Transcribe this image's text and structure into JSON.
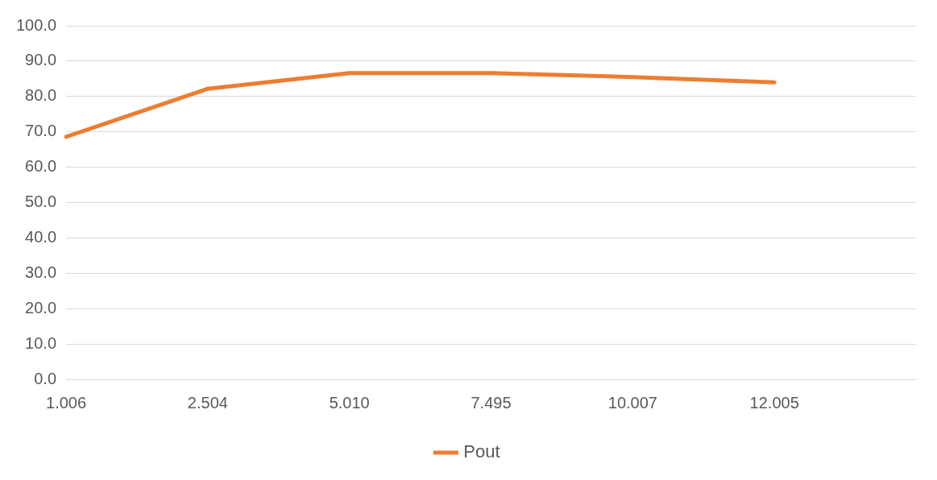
{
  "chart_data": {
    "type": "line",
    "categories": [
      "1.006",
      "2.504",
      "5.010",
      "7.495",
      "10.007",
      "12.005",
      null
    ],
    "series": [
      {
        "name": "Pout",
        "color": "#ed7d31",
        "values": [
          68.6,
          82.2,
          86.6,
          86.6,
          85.5,
          84.0,
          null
        ]
      }
    ],
    "ylim": [
      0,
      100
    ],
    "yticks": [
      {
        "value": 0,
        "label": "0.0"
      },
      {
        "value": 10,
        "label": "10.0"
      },
      {
        "value": 20,
        "label": "20.0"
      },
      {
        "value": 30,
        "label": "30.0"
      },
      {
        "value": 40,
        "label": "40.0"
      },
      {
        "value": 50,
        "label": "50.0"
      },
      {
        "value": 60,
        "label": "60.0"
      },
      {
        "value": 70,
        "label": "70.0"
      },
      {
        "value": 80,
        "label": "80.0"
      },
      {
        "value": 90,
        "label": "90.0"
      },
      {
        "value": 100,
        "label": "100.0"
      }
    ],
    "grid": "y",
    "legend": "bottom",
    "marker": "none",
    "line_style": "solid"
  }
}
